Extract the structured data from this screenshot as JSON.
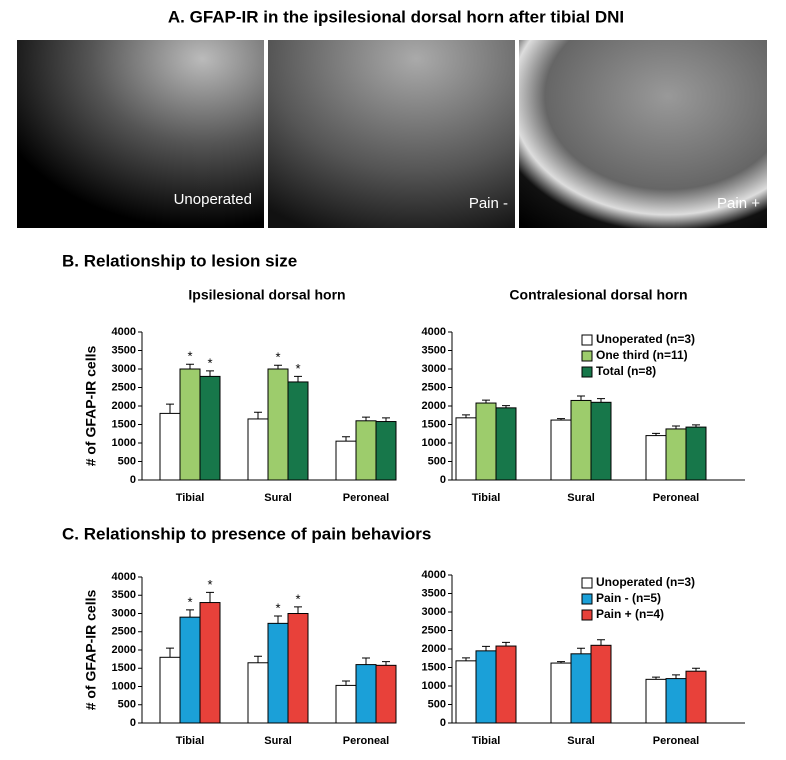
{
  "panel_a": {
    "title": "A.   GFAP-IR in the ipsilesional dorsal horn after tibial DNI",
    "images": [
      {
        "label": "Unoperated"
      },
      {
        "label": "Pain -"
      },
      {
        "label": "Pain +"
      }
    ]
  },
  "section_b_title": "B.   Relationship to lesion size",
  "section_c_title": "C.   Relationship to presence of pain behaviors",
  "chart_data": [
    {
      "type": "bar",
      "title": "Ipsilesional dorsal horn",
      "ylabel": "# of GFAP-IR cells",
      "categories": [
        "Tibial",
        "Sural",
        "Peroneal"
      ],
      "ylim": [
        0,
        4000
      ],
      "yticks": [
        0,
        500,
        1000,
        1500,
        2000,
        2500,
        3000,
        3500,
        4000
      ],
      "series": [
        {
          "name": "Unoperated (n=3)",
          "color": "#ffffff",
          "values": [
            1800,
            1650,
            1050
          ],
          "errors": [
            250,
            180,
            120
          ]
        },
        {
          "name": "One third (n=11)",
          "color": "#9dcc6c",
          "values": [
            3000,
            3000,
            1600
          ],
          "errors": [
            130,
            100,
            100
          ],
          "marks": [
            "*",
            "*",
            null
          ]
        },
        {
          "name": "Total (n=8)",
          "color": "#17774a",
          "values": [
            2800,
            2650,
            1580
          ],
          "errors": [
            150,
            150,
            100
          ],
          "marks": [
            "*",
            "*",
            null
          ]
        }
      ]
    },
    {
      "type": "bar",
      "title": "Contralesional dorsal horn",
      "legend": "upper right",
      "categories": [
        "Tibial",
        "Sural",
        "Peroneal"
      ],
      "ylim": [
        0,
        4000
      ],
      "yticks": [
        0,
        500,
        1000,
        1500,
        2000,
        2500,
        3000,
        3500,
        4000
      ],
      "series": [
        {
          "name": "Unoperated (n=3)",
          "color": "#ffffff",
          "values": [
            1680,
            1620,
            1200
          ],
          "errors": [
            80,
            40,
            60
          ]
        },
        {
          "name": "One third (n=11)",
          "color": "#9dcc6c",
          "values": [
            2080,
            2150,
            1380
          ],
          "errors": [
            80,
            120,
            80
          ]
        },
        {
          "name": "Total (n=8)",
          "color": "#17774a",
          "values": [
            1950,
            2100,
            1430
          ],
          "errors": [
            60,
            100,
            60
          ]
        }
      ]
    },
    {
      "type": "bar",
      "ylabel": "# of GFAP-IR cells",
      "categories": [
        "Tibial",
        "Sural",
        "Peroneal"
      ],
      "ylim": [
        0,
        4000
      ],
      "yticks": [
        0,
        500,
        1000,
        1500,
        2000,
        2500,
        3000,
        3500,
        4000
      ],
      "series": [
        {
          "name": "Unoperated (n=3)",
          "color": "#ffffff",
          "values": [
            1800,
            1650,
            1030
          ],
          "errors": [
            250,
            180,
            120
          ]
        },
        {
          "name": "Pain - (n=5)",
          "color": "#1ba0d8",
          "values": [
            2900,
            2730,
            1600
          ],
          "errors": [
            200,
            200,
            180
          ],
          "marks": [
            "*",
            "*",
            null
          ]
        },
        {
          "name": "Pain + (n=4)",
          "color": "#e8413a",
          "values": [
            3300,
            3000,
            1580
          ],
          "errors": [
            280,
            180,
            100
          ],
          "marks": [
            "*",
            "*",
            null
          ]
        }
      ]
    },
    {
      "type": "bar",
      "legend": "upper right",
      "categories": [
        "Tibial",
        "Sural",
        "Peroneal"
      ],
      "ylim": [
        0,
        4000
      ],
      "yticks": [
        0,
        500,
        1000,
        1500,
        2000,
        2500,
        3000,
        3500,
        4000
      ],
      "series": [
        {
          "name": "Unoperated (n=3)",
          "color": "#ffffff",
          "values": [
            1680,
            1620,
            1180
          ],
          "errors": [
            80,
            40,
            60
          ]
        },
        {
          "name": "Pain - (n=5)",
          "color": "#1ba0d8",
          "values": [
            1950,
            1870,
            1200
          ],
          "errors": [
            120,
            150,
            100
          ]
        },
        {
          "name": "Pain + (n=4)",
          "color": "#e8413a",
          "values": [
            2080,
            2100,
            1400
          ],
          "errors": [
            100,
            150,
            80
          ]
        }
      ]
    }
  ]
}
